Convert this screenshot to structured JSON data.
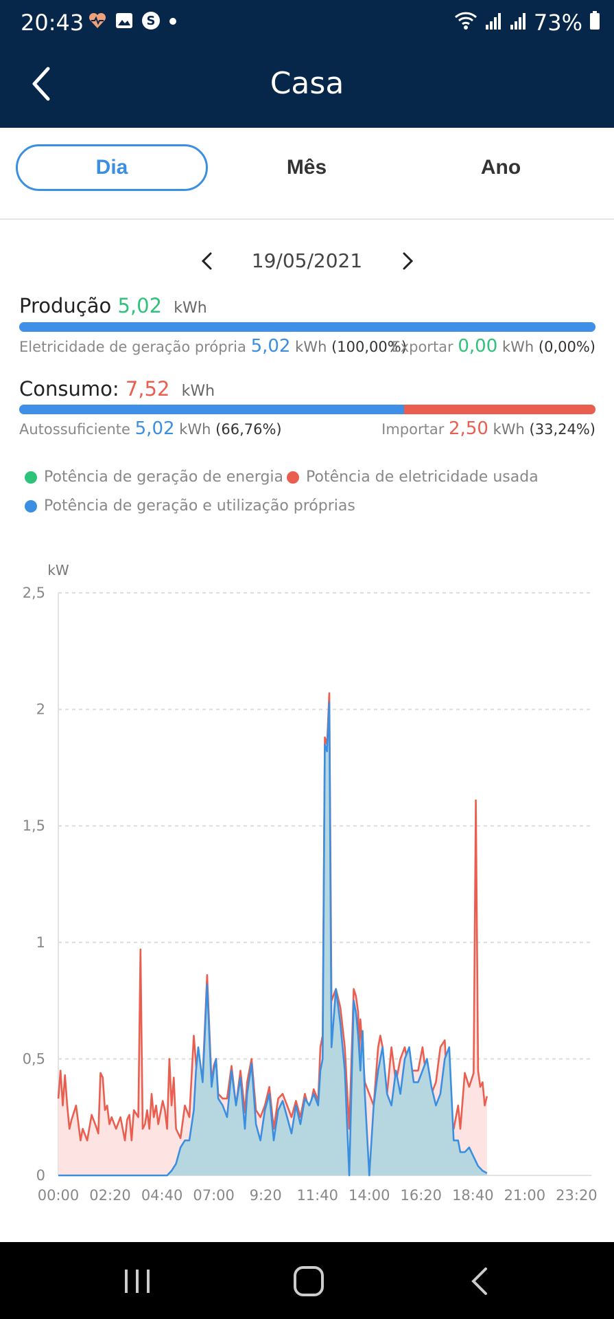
{
  "status": {
    "time": "20:43",
    "battery": "73%"
  },
  "header": {
    "title": "Casa"
  },
  "tabs": [
    {
      "label": "Dia"
    },
    {
      "label": "Mês"
    },
    {
      "label": "Ano"
    }
  ],
  "date": "19/05/2021",
  "production": {
    "label": "Produção",
    "value": "5,02",
    "unit": "kWh",
    "self_label": "Eletricidade de geração própria",
    "self_value": "5,02",
    "self_unit": "kWh",
    "self_pct": "(100,00%)",
    "export_label": "Exportar",
    "export_value": "0,00",
    "export_unit": "kWh",
    "export_pct": "(0,00%)",
    "bar_fraction_blue": 1.0
  },
  "consumption": {
    "label": "Consumo:",
    "value": "7,52",
    "unit": "kWh",
    "self_label": "Autossuficiente",
    "self_value": "5,02",
    "self_unit": "kWh",
    "self_pct": "(66,76%)",
    "import_label": "Importar",
    "import_value": "2,50",
    "import_unit": "kWh",
    "import_pct": "(33,24%)",
    "bar_fraction_blue": 0.6676
  },
  "legend": [
    {
      "label": "Potência de geração de energia",
      "color": "#2fc27a"
    },
    {
      "label": "Potência de eletricidade usada",
      "color": "#ea5e50"
    },
    {
      "label": "Potência de geração e utilização próprias",
      "color": "#3b8fe0"
    }
  ],
  "chart_data": {
    "type": "area",
    "ylabel": "kW",
    "ylim": [
      0,
      2.5
    ],
    "yticks": [
      "0",
      "0,5",
      "1",
      "1,5",
      "2",
      "2,5"
    ],
    "x_tick_labels": [
      "00:00",
      "02:20",
      "04:40",
      "07:00",
      "9:20",
      "11:40",
      "14:00",
      "16:20",
      "18:40",
      "21:00",
      "23:20"
    ],
    "x_unit": "hours",
    "x_range": [
      0,
      24
    ],
    "grid": true,
    "series": [
      {
        "name": "Potência de eletricidade usada",
        "color": "#ea5e50",
        "x": [
          0.0,
          0.1,
          0.2,
          0.3,
          0.4,
          0.5,
          0.6,
          0.8,
          1.0,
          1.1,
          1.3,
          1.5,
          1.7,
          1.8,
          1.9,
          2.0,
          2.1,
          2.2,
          2.3,
          2.4,
          2.6,
          2.8,
          3.0,
          3.1,
          3.2,
          3.3,
          3.4,
          3.6,
          3.7,
          3.8,
          3.9,
          4.0,
          4.1,
          4.2,
          4.3,
          4.4,
          4.5,
          4.7,
          4.8,
          4.9,
          5.0,
          5.1,
          5.2,
          5.3,
          5.5,
          5.7,
          5.9,
          6.1,
          6.2,
          6.3,
          6.5,
          6.7,
          6.9,
          7.0,
          7.1,
          7.2,
          7.4,
          7.6,
          7.8,
          8.0,
          8.2,
          8.4,
          8.5,
          8.7,
          8.9,
          9.1,
          9.3,
          9.5,
          9.7,
          9.9,
          10.1,
          10.3,
          10.5,
          10.7,
          10.9,
          11.1,
          11.3,
          11.5,
          11.7,
          11.8,
          11.9,
          12.0,
          12.1,
          12.2,
          12.3,
          12.5,
          12.7,
          12.9,
          13.1,
          13.3,
          13.4,
          13.5,
          13.55,
          13.6,
          13.8,
          14.0,
          14.2,
          14.4,
          14.5,
          14.6,
          14.7,
          14.8,
          15.0,
          15.2,
          15.4,
          15.6,
          15.8,
          16.0,
          16.2,
          16.4,
          16.6,
          16.8,
          17.0,
          17.2,
          17.4,
          17.6,
          17.8,
          18.0,
          18.1,
          18.3,
          18.5,
          18.7,
          18.8,
          18.9,
          19.0,
          19.1,
          19.2,
          19.3
        ],
        "y": [
          0.33,
          0.45,
          0.3,
          0.43,
          0.3,
          0.2,
          0.24,
          0.3,
          0.15,
          0.2,
          0.15,
          0.26,
          0.21,
          0.18,
          0.44,
          0.42,
          0.28,
          0.3,
          0.22,
          0.25,
          0.2,
          0.25,
          0.15,
          0.24,
          0.26,
          0.15,
          0.28,
          0.25,
          0.97,
          0.2,
          0.22,
          0.28,
          0.2,
          0.35,
          0.25,
          0.3,
          0.22,
          0.32,
          0.28,
          0.2,
          0.5,
          0.3,
          0.42,
          0.2,
          0.16,
          0.3,
          0.25,
          0.6,
          0.48,
          0.35,
          0.42,
          0.86,
          0.4,
          0.47,
          0.5,
          0.35,
          0.33,
          0.33,
          0.47,
          0.3,
          0.45,
          0.27,
          0.4,
          0.5,
          0.28,
          0.25,
          0.3,
          0.38,
          0.2,
          0.33,
          0.35,
          0.3,
          0.25,
          0.32,
          0.25,
          0.35,
          0.28,
          0.37,
          0.32,
          0.55,
          0.6,
          1.88,
          1.85,
          2.07,
          0.75,
          0.8,
          0.72,
          0.55,
          0.2,
          0.8,
          0.77,
          0.7,
          0.5,
          0.67,
          0.4,
          0.35,
          0.3,
          0.55,
          0.6,
          0.55,
          0.42,
          0.35,
          0.55,
          0.4,
          0.5,
          0.55,
          0.45,
          0.45,
          0.45,
          0.55,
          0.4,
          0.35,
          0.4,
          0.55,
          0.58,
          0.2,
          0.2,
          0.3,
          0.2,
          0.44,
          0.38,
          0.44,
          1.61,
          0.45,
          0.38,
          0.4,
          0.3,
          0.34
        ],
        "area_fill": "#fde3e1"
      },
      {
        "name": "Potência de geração e utilização próprias",
        "color": "#3b8fe0",
        "x": [
          0.0,
          4.9,
          5.1,
          5.3,
          5.5,
          5.7,
          5.9,
          6.1,
          6.2,
          6.3,
          6.5,
          6.7,
          6.9,
          7.0,
          7.1,
          7.2,
          7.4,
          7.6,
          7.8,
          8.0,
          8.2,
          8.4,
          8.5,
          8.7,
          8.9,
          9.1,
          9.3,
          9.5,
          9.7,
          9.9,
          10.1,
          10.3,
          10.5,
          10.7,
          10.9,
          11.1,
          11.3,
          11.5,
          11.7,
          11.8,
          11.9,
          12.0,
          12.1,
          12.2,
          12.3,
          12.5,
          12.7,
          12.9,
          13.1,
          13.3,
          13.4,
          13.5,
          13.6,
          13.7,
          13.8,
          14.0,
          14.2,
          14.4,
          14.5,
          14.6,
          14.8,
          15.0,
          15.2,
          15.4,
          15.6,
          15.8,
          16.0,
          16.2,
          16.4,
          16.6,
          16.8,
          17.0,
          17.2,
          17.4,
          17.6,
          17.8,
          18.0,
          18.1,
          18.3,
          18.5,
          18.7,
          18.9,
          19.1,
          19.3
        ],
        "y": [
          0.0,
          0.0,
          0.02,
          0.05,
          0.12,
          0.15,
          0.15,
          0.28,
          0.45,
          0.55,
          0.4,
          0.82,
          0.38,
          0.45,
          0.5,
          0.33,
          0.3,
          0.25,
          0.45,
          0.3,
          0.42,
          0.2,
          0.35,
          0.48,
          0.22,
          0.15,
          0.28,
          0.35,
          0.15,
          0.28,
          0.32,
          0.25,
          0.18,
          0.3,
          0.22,
          0.33,
          0.3,
          0.35,
          0.3,
          0.45,
          0.5,
          1.85,
          1.82,
          2.03,
          0.55,
          0.8,
          0.65,
          0.45,
          0.0,
          0.75,
          0.7,
          0.6,
          0.45,
          0.62,
          0.35,
          0.0,
          0.3,
          0.45,
          0.5,
          0.55,
          0.35,
          0.3,
          0.45,
          0.35,
          0.5,
          0.55,
          0.4,
          0.4,
          0.45,
          0.5,
          0.38,
          0.3,
          0.35,
          0.5,
          0.55,
          0.15,
          0.15,
          0.1,
          0.1,
          0.12,
          0.08,
          0.04,
          0.02,
          0.01
        ],
        "area_fill": "#b6d7df"
      }
    ]
  }
}
